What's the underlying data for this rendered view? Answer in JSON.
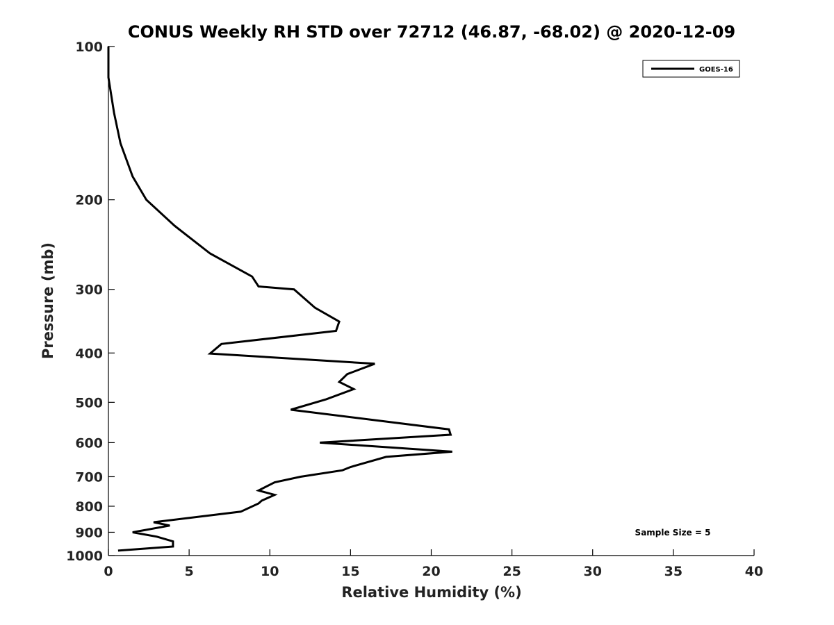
{
  "chart_data": {
    "type": "line",
    "title": "CONUS Weekly RH STD over 72712 (46.87, -68.02) @ 2020-12-09",
    "xlabel": "Relative Humidity (%)",
    "ylabel": "Pressure (mb)",
    "xlim": [
      0,
      40
    ],
    "ylim": [
      1000,
      100
    ],
    "y_scale": "log",
    "y_reversed": true,
    "xticks": [
      "0",
      "5",
      "10",
      "15",
      "20",
      "25",
      "30",
      "35",
      "40"
    ],
    "yticks": [
      "100",
      "200",
      "300",
      "400",
      "500",
      "600",
      "700",
      "800",
      "900",
      "1000"
    ],
    "grid": false,
    "legend_position": "top-right",
    "annotation": "Sample Size = 5",
    "series": [
      {
        "name": "GOES-16",
        "color": "#000000",
        "points": [
          [
            0.0,
            100
          ],
          [
            0.0,
            115
          ],
          [
            0.35,
            135
          ],
          [
            0.75,
            155
          ],
          [
            1.5,
            180
          ],
          [
            2.35,
            200
          ],
          [
            4.1,
            225
          ],
          [
            6.3,
            255
          ],
          [
            8.9,
            283
          ],
          [
            9.3,
            296
          ],
          [
            11.5,
            300
          ],
          [
            12.8,
            326
          ],
          [
            14.3,
            347
          ],
          [
            14.1,
            362
          ],
          [
            7.0,
            384
          ],
          [
            6.3,
            401
          ],
          [
            16.5,
            420
          ],
          [
            14.8,
            440
          ],
          [
            14.3,
            456
          ],
          [
            15.2,
            471
          ],
          [
            13.5,
            493
          ],
          [
            11.3,
            517
          ],
          [
            21.1,
            565
          ],
          [
            21.2,
            579
          ],
          [
            13.1,
            600
          ],
          [
            21.3,
            625
          ],
          [
            17.2,
            640
          ],
          [
            15.0,
            670
          ],
          [
            14.5,
            680
          ],
          [
            11.9,
            700
          ],
          [
            10.3,
            718
          ],
          [
            9.3,
            745
          ],
          [
            10.3,
            760
          ],
          [
            9.5,
            780
          ],
          [
            9.3,
            790
          ],
          [
            8.2,
            820
          ],
          [
            2.8,
            860
          ],
          [
            3.8,
            873
          ],
          [
            1.5,
            900
          ],
          [
            3.0,
            918
          ],
          [
            4.0,
            938
          ],
          [
            4.0,
            960
          ],
          [
            0.6,
            978
          ]
        ]
      }
    ]
  }
}
